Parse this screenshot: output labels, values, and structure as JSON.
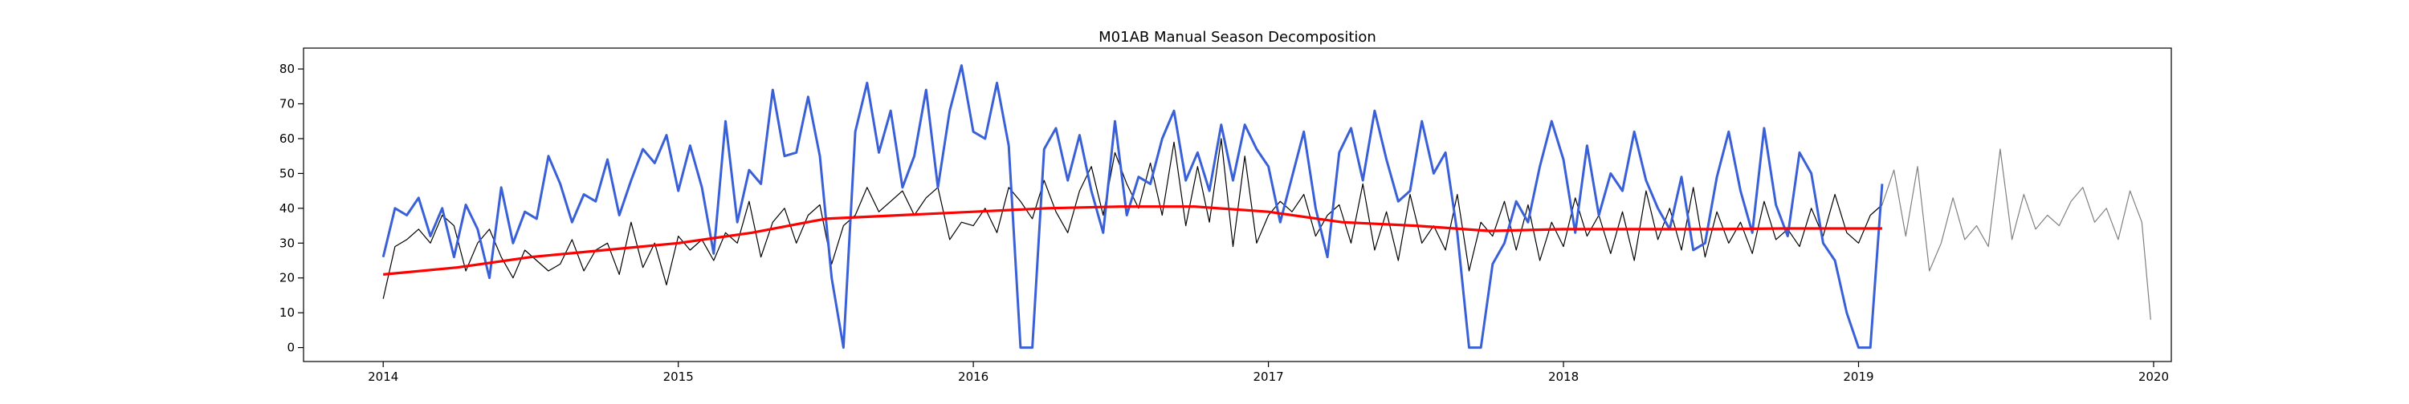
{
  "chart_data": {
    "type": "line",
    "title": "M01AB Manual Season Decomposition",
    "xlabel": "",
    "ylabel": "",
    "xlim": [
      2013.73,
      2020.06
    ],
    "ylim": [
      -4,
      86
    ],
    "grid": false,
    "x_ticks": [
      2014,
      2015,
      2016,
      2017,
      2018,
      2019,
      2020
    ],
    "y_ticks": [
      0,
      10,
      20,
      30,
      40,
      50,
      60,
      70,
      80
    ],
    "series": [
      {
        "role": "observed",
        "color": "#000000",
        "x": [
          2014.0,
          2014.04,
          2014.08,
          2014.12,
          2014.16,
          2014.2,
          2014.24,
          2014.28,
          2014.32,
          2014.36,
          2014.4,
          2014.44,
          2014.48,
          2014.52,
          2014.56,
          2014.6,
          2014.64,
          2014.68,
          2014.72,
          2014.76,
          2014.8,
          2014.84,
          2014.88,
          2014.92,
          2014.96,
          2015.0,
          2015.04,
          2015.08,
          2015.12,
          2015.16,
          2015.2,
          2015.24,
          2015.28,
          2015.32,
          2015.36,
          2015.4,
          2015.44,
          2015.48,
          2015.52,
          2015.56,
          2015.6,
          2015.64,
          2015.68,
          2015.72,
          2015.76,
          2015.8,
          2015.84,
          2015.88,
          2015.92,
          2015.96,
          2016.0,
          2016.04,
          2016.08,
          2016.12,
          2016.16,
          2016.2,
          2016.24,
          2016.28,
          2016.32,
          2016.36,
          2016.4,
          2016.44,
          2016.48,
          2016.52,
          2016.56,
          2016.6,
          2016.64,
          2016.68,
          2016.72,
          2016.76,
          2016.8,
          2016.84,
          2016.88,
          2016.92,
          2016.96,
          2017.0,
          2017.04,
          2017.08,
          2017.12,
          2017.16,
          2017.2,
          2017.24,
          2017.28,
          2017.32,
          2017.36,
          2017.4,
          2017.44,
          2017.48,
          2017.52,
          2017.56,
          2017.6,
          2017.64,
          2017.68,
          2017.72,
          2017.76,
          2017.8,
          2017.84,
          2017.88,
          2017.92,
          2017.96,
          2018.0,
          2018.04,
          2018.08,
          2018.12,
          2018.16,
          2018.2,
          2018.24,
          2018.28,
          2018.32,
          2018.36,
          2018.4,
          2018.44,
          2018.48,
          2018.52,
          2018.56,
          2018.6,
          2018.64,
          2018.68,
          2018.72,
          2018.76,
          2018.8,
          2018.84,
          2018.88,
          2018.92,
          2018.96,
          2019.0,
          2019.04,
          2019.08
        ],
        "values": [
          14,
          29,
          31,
          34,
          30,
          38,
          35,
          22,
          30,
          34,
          26,
          20,
          28,
          25,
          22,
          24,
          31,
          22,
          28,
          30,
          21,
          36,
          23,
          30,
          18,
          32,
          28,
          31,
          25,
          33,
          30,
          42,
          26,
          36,
          40,
          30,
          38,
          41,
          24,
          35,
          38,
          46,
          39,
          42,
          45,
          38,
          43,
          46,
          31,
          36,
          35,
          40,
          33,
          46,
          42,
          37,
          48,
          39,
          33,
          45,
          52,
          38,
          56,
          47,
          40,
          53,
          38,
          59,
          35,
          52,
          36,
          60,
          29,
          55,
          30,
          38,
          42,
          39,
          44,
          32,
          38,
          41,
          30,
          47,
          28,
          39,
          25,
          44,
          30,
          35,
          28,
          44,
          22,
          36,
          32,
          42,
          28,
          41,
          25,
          36,
          29,
          43,
          32,
          38,
          27,
          39,
          25,
          45,
          31,
          40,
          28,
          46,
          26,
          39,
          30,
          36,
          27,
          42,
          31,
          34,
          29,
          40,
          32,
          44,
          33,
          30,
          38,
          41
        ],
        "width": 1.2
      },
      {
        "role": "forecast-continuation",
        "color": "#808080",
        "x": [
          2019.08,
          2019.12,
          2019.16,
          2019.2,
          2019.24,
          2019.28,
          2019.32,
          2019.36,
          2019.4,
          2019.44,
          2019.48,
          2019.52,
          2019.56,
          2019.6,
          2019.64,
          2019.68,
          2019.72,
          2019.76,
          2019.8,
          2019.84,
          2019.88,
          2019.92,
          2019.96,
          2019.99
        ],
        "values": [
          41,
          51,
          32,
          52,
          22,
          30,
          43,
          31,
          35,
          29,
          57,
          31,
          44,
          34,
          38,
          35,
          42,
          46,
          36,
          40,
          31,
          45,
          36,
          8
        ],
        "width": 1.2
      },
      {
        "role": "seasonal",
        "color": "#3a60d8",
        "x": [
          2014.0,
          2014.04,
          2014.08,
          2014.12,
          2014.16,
          2014.2,
          2014.24,
          2014.28,
          2014.32,
          2014.36,
          2014.4,
          2014.44,
          2014.48,
          2014.52,
          2014.56,
          2014.6,
          2014.64,
          2014.68,
          2014.72,
          2014.76,
          2014.8,
          2014.84,
          2014.88,
          2014.92,
          2014.96,
          2015.0,
          2015.04,
          2015.08,
          2015.12,
          2015.16,
          2015.2,
          2015.24,
          2015.28,
          2015.32,
          2015.36,
          2015.4,
          2015.44,
          2015.48,
          2015.52,
          2015.56,
          2015.6,
          2015.64,
          2015.68,
          2015.72,
          2015.76,
          2015.8,
          2015.84,
          2015.88,
          2015.92,
          2015.96,
          2016.0,
          2016.04,
          2016.08,
          2016.12,
          2016.16,
          2016.2,
          2016.24,
          2016.28,
          2016.32,
          2016.36,
          2016.4,
          2016.44,
          2016.48,
          2016.52,
          2016.56,
          2016.6,
          2016.64,
          2016.68,
          2016.72,
          2016.76,
          2016.8,
          2016.84,
          2016.88,
          2016.92,
          2016.96,
          2017.0,
          2017.04,
          2017.08,
          2017.12,
          2017.16,
          2017.2,
          2017.24,
          2017.28,
          2017.32,
          2017.36,
          2017.4,
          2017.44,
          2017.48,
          2017.52,
          2017.56,
          2017.6,
          2017.64,
          2017.68,
          2017.72,
          2017.76,
          2017.8,
          2017.84,
          2017.88,
          2017.92,
          2017.96,
          2018.0,
          2018.04,
          2018.08,
          2018.12,
          2018.16,
          2018.2,
          2018.24,
          2018.28,
          2018.32,
          2018.36,
          2018.4,
          2018.44,
          2018.48,
          2018.52,
          2018.56,
          2018.6,
          2018.64,
          2018.68,
          2018.72,
          2018.76,
          2018.8,
          2018.84,
          2018.88,
          2018.92,
          2018.96,
          2019.0,
          2019.04,
          2019.08
        ],
        "values": [
          26,
          40,
          38,
          43,
          32,
          40,
          26,
          41,
          34,
          20,
          46,
          30,
          39,
          37,
          55,
          47,
          36,
          44,
          42,
          54,
          38,
          48,
          57,
          53,
          61,
          45,
          58,
          46,
          27,
          65,
          36,
          51,
          47,
          74,
          55,
          56,
          72,
          55,
          20,
          0,
          62,
          76,
          56,
          68,
          46,
          55,
          74,
          46,
          68,
          81,
          62,
          60,
          76,
          58,
          0,
          0,
          57,
          63,
          48,
          61,
          45,
          33,
          65,
          38,
          49,
          47,
          60,
          68,
          48,
          56,
          45,
          64,
          48,
          64,
          57,
          52,
          36,
          49,
          62,
          40,
          26,
          56,
          63,
          48,
          68,
          54,
          42,
          45,
          65,
          50,
          56,
          33,
          0,
          0,
          24,
          30,
          42,
          36,
          52,
          65,
          54,
          33,
          58,
          38,
          50,
          45,
          62,
          48,
          40,
          34,
          49,
          28,
          30,
          49,
          62,
          45,
          33,
          63,
          41,
          32,
          56,
          50,
          30,
          25,
          10,
          0,
          0,
          47
        ],
        "width": 3
      },
      {
        "role": "trend",
        "color": "#ff0000",
        "x": [
          2014.0,
          2014.25,
          2014.5,
          2014.75,
          2015.0,
          2015.25,
          2015.5,
          2015.75,
          2016.0,
          2016.25,
          2016.5,
          2016.75,
          2017.0,
          2017.25,
          2017.5,
          2017.75,
          2018.0,
          2018.25,
          2018.5,
          2018.75,
          2019.0,
          2019.08
        ],
        "values": [
          21,
          23,
          26,
          28,
          30,
          33,
          37,
          38,
          39,
          40,
          40.5,
          40.5,
          39,
          36,
          35,
          33.5,
          34,
          34,
          34,
          34.2,
          34.2,
          34.2
        ],
        "width": 3.2
      }
    ]
  }
}
